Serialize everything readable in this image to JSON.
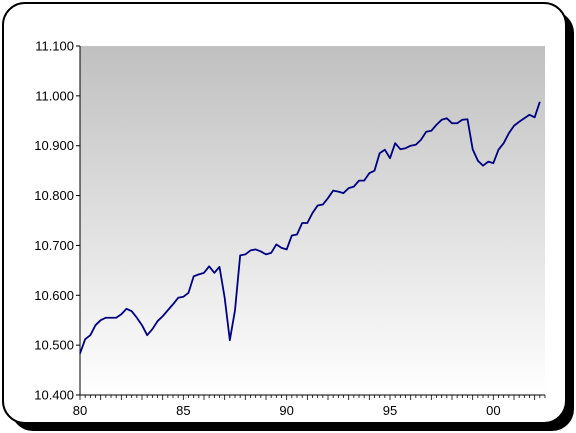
{
  "chart_data": {
    "type": "line",
    "title": "",
    "xlabel": "",
    "ylabel": "",
    "xlim": [
      80.0,
      102.5
    ],
    "ylim": [
      10.4,
      11.1
    ],
    "x_ticks": [
      80,
      85,
      90,
      95,
      0
    ],
    "x_tick_labels": [
      "80",
      "85",
      "90",
      "95",
      "00"
    ],
    "y_ticks": [
      10.4,
      10.5,
      10.6,
      10.7,
      10.8,
      10.9,
      11.0,
      11.1
    ],
    "y_tick_labels": [
      "10.400",
      "10.500",
      "10.600",
      "10.700",
      "10.800",
      "10.900",
      "11.000",
      "11.100"
    ],
    "grid": false,
    "legend": "none",
    "colors": {
      "line": "#000080",
      "plot_gradient_top": "#c0c0c0",
      "plot_gradient_bottom": "#ffffff",
      "frame_border": "#000000",
      "shadow": "#000000"
    },
    "series": [
      {
        "x": [
          80.0,
          80.25,
          80.5,
          80.75,
          81.0,
          81.25,
          81.5,
          81.75,
          82.0,
          82.25,
          82.5,
          82.75,
          83.0,
          83.25,
          83.5,
          83.75,
          84.0,
          84.25,
          84.5,
          84.75,
          85.0,
          85.25,
          85.5,
          85.75,
          86.0,
          86.25,
          86.5,
          86.75,
          87.0,
          87.25,
          87.5,
          87.75,
          88.0,
          88.25,
          88.5,
          88.75,
          89.0,
          89.25,
          89.5,
          89.75,
          90.0,
          90.25,
          90.5,
          90.75,
          91.0,
          91.25,
          91.5,
          91.75,
          92.0,
          92.25,
          92.5,
          92.75,
          93.0,
          93.25,
          93.5,
          93.75,
          94.0,
          94.25,
          94.5,
          94.75,
          95.0,
          95.25,
          95.5,
          95.75,
          96.0,
          96.25,
          96.5,
          96.75,
          97.0,
          97.25,
          97.5,
          97.75,
          98.0,
          98.25,
          98.5,
          98.75,
          99.0,
          99.25,
          99.5,
          99.75,
          100.0,
          100.25,
          100.5,
          100.75,
          101.0,
          101.25,
          101.5,
          101.75,
          102.0,
          102.25
        ],
        "values": [
          10.483,
          10.512,
          10.52,
          10.54,
          10.55,
          10.555,
          10.555,
          10.555,
          10.562,
          10.573,
          10.568,
          10.555,
          10.54,
          10.52,
          10.532,
          10.548,
          10.558,
          10.57,
          10.582,
          10.595,
          10.597,
          10.605,
          10.638,
          10.642,
          10.645,
          10.658,
          10.645,
          10.657,
          10.595,
          10.51,
          10.57,
          10.68,
          10.682,
          10.69,
          10.692,
          10.688,
          10.682,
          10.685,
          10.702,
          10.695,
          10.692,
          10.72,
          10.722,
          10.745,
          10.745,
          10.765,
          10.78,
          10.782,
          10.795,
          10.81,
          10.808,
          10.805,
          10.815,
          10.818,
          10.83,
          10.83,
          10.845,
          10.85,
          10.885,
          10.892,
          10.875,
          10.905,
          10.893,
          10.895,
          10.9,
          10.902,
          10.912,
          10.928,
          10.93,
          10.942,
          10.952,
          10.955,
          10.945,
          10.945,
          10.952,
          10.953,
          10.893,
          10.87,
          10.86,
          10.868,
          10.865,
          10.892,
          10.905,
          10.925,
          10.94,
          10.948,
          10.955,
          10.962,
          10.957,
          10.988
        ]
      }
    ]
  }
}
